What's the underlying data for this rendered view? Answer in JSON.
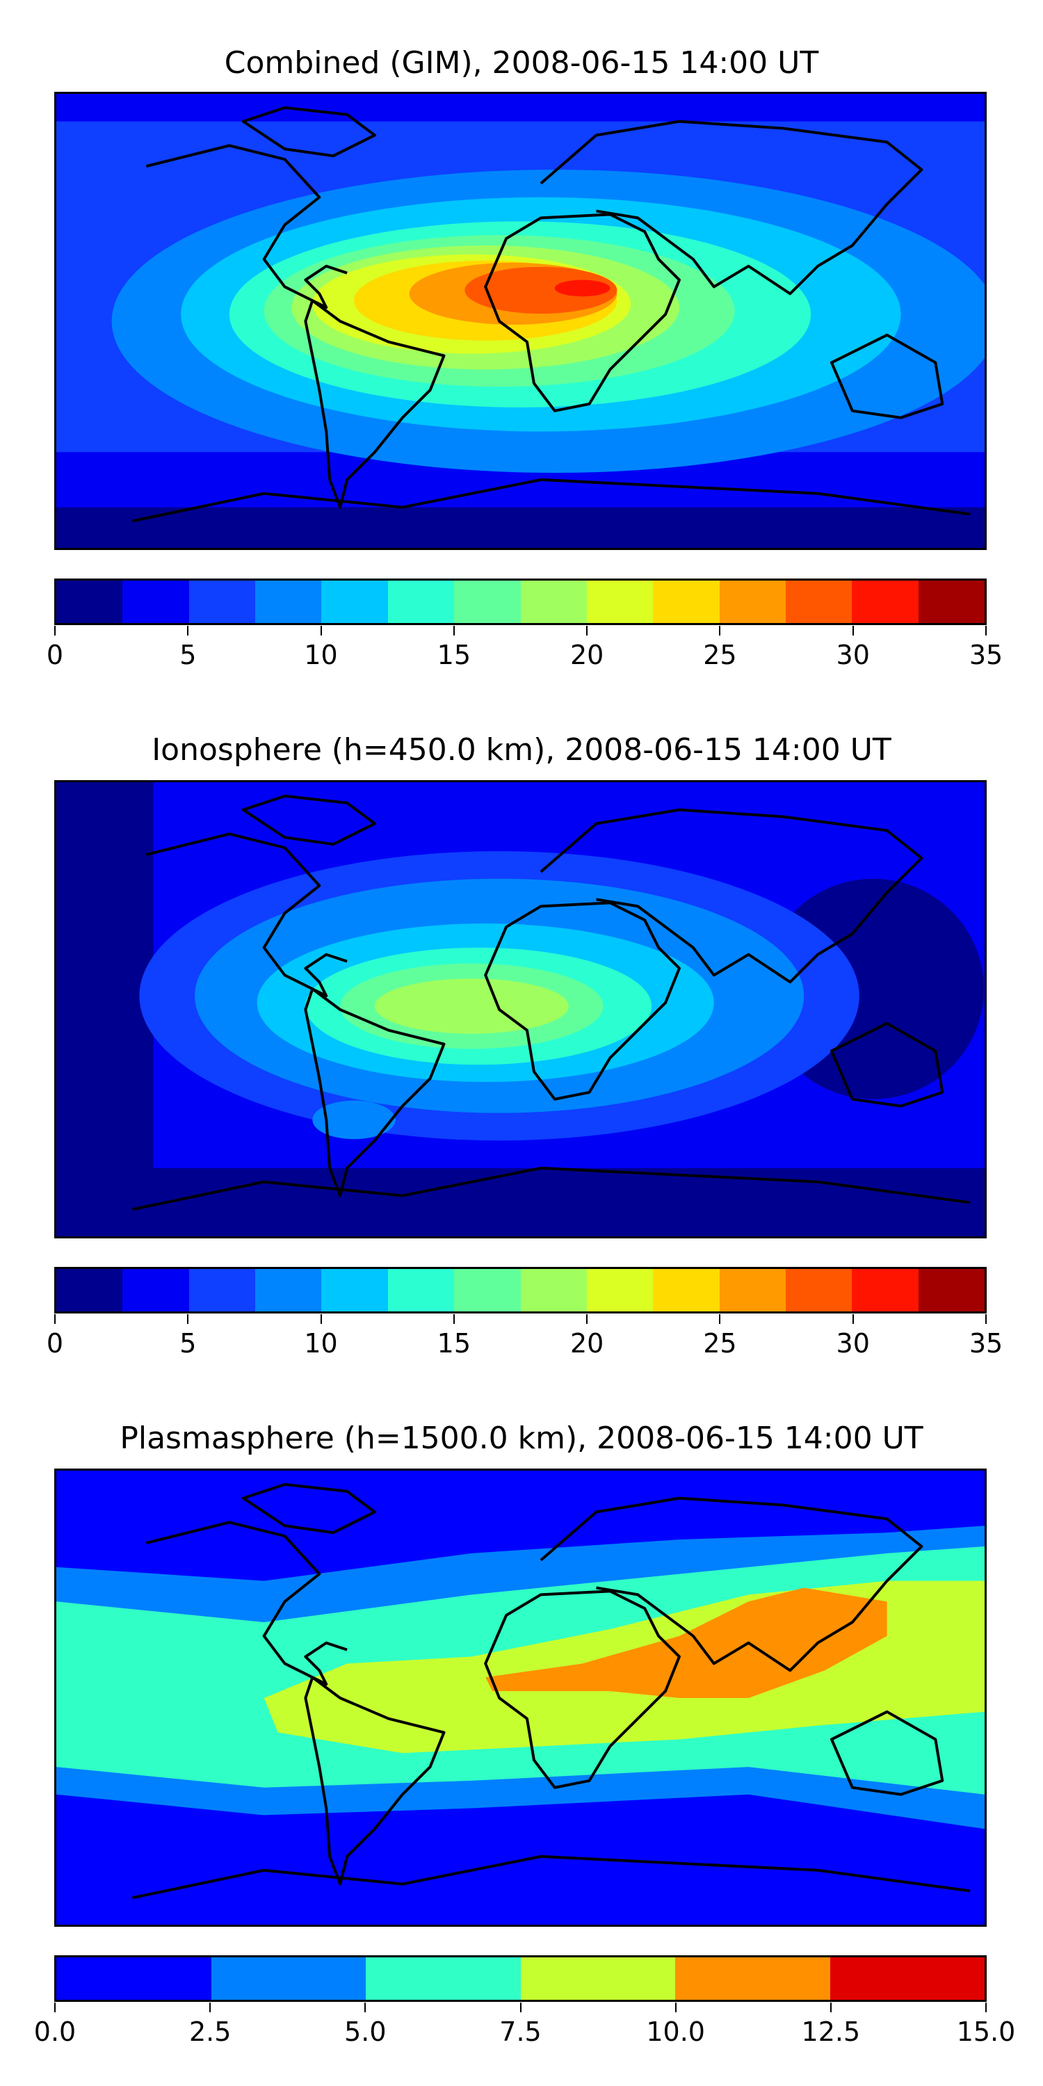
{
  "panels": [
    {
      "title": "Combined (GIM), 2008-06-15 14:00 UT",
      "colorbar": {
        "ticks": [
          "0",
          "5",
          "10",
          "15",
          "20",
          "25",
          "30",
          "35"
        ],
        "levels": [
          0,
          2.5,
          5,
          7.5,
          10,
          12.5,
          15,
          17.5,
          20,
          22.5,
          25,
          27.5,
          30,
          32.5,
          35
        ],
        "colors": [
          "#00008f",
          "#0000f5",
          "#0f3fff",
          "#0085ff",
          "#00c6ff",
          "#2bffd1",
          "#61ff9b",
          "#a0ff5e",
          "#dbff23",
          "#ffdb00",
          "#ff9a00",
          "#ff5700",
          "#ff1400",
          "#a20000"
        ]
      }
    },
    {
      "title": "Ionosphere  (h=450.0 km), 2008-06-15 14:00 UT",
      "colorbar": {
        "ticks": [
          "0",
          "5",
          "10",
          "15",
          "20",
          "25",
          "30",
          "35"
        ],
        "levels": [
          0,
          2.5,
          5,
          7.5,
          10,
          12.5,
          15,
          17.5,
          20,
          22.5,
          25,
          27.5,
          30,
          32.5,
          35
        ],
        "colors": [
          "#00008f",
          "#0000f5",
          "#0f3fff",
          "#0085ff",
          "#00c6ff",
          "#2bffd1",
          "#61ff9b",
          "#a0ff5e",
          "#dbff23",
          "#ffdb00",
          "#ff9a00",
          "#ff5700",
          "#ff1400",
          "#a20000"
        ]
      }
    },
    {
      "title": "Plasmasphere (h=1500.0 km), 2008-06-15 14:00 UT",
      "colorbar": {
        "ticks": [
          "0.0",
          "2.5",
          "5.0",
          "7.5",
          "10.0",
          "12.5",
          "15.0"
        ],
        "levels": [
          0,
          2.5,
          5,
          7.5,
          10,
          12.5,
          15
        ],
        "colors": [
          "#0000ff",
          "#0080ff",
          "#30ffc6",
          "#c6ff30",
          "#ff9000",
          "#e00000"
        ]
      }
    }
  ]
}
